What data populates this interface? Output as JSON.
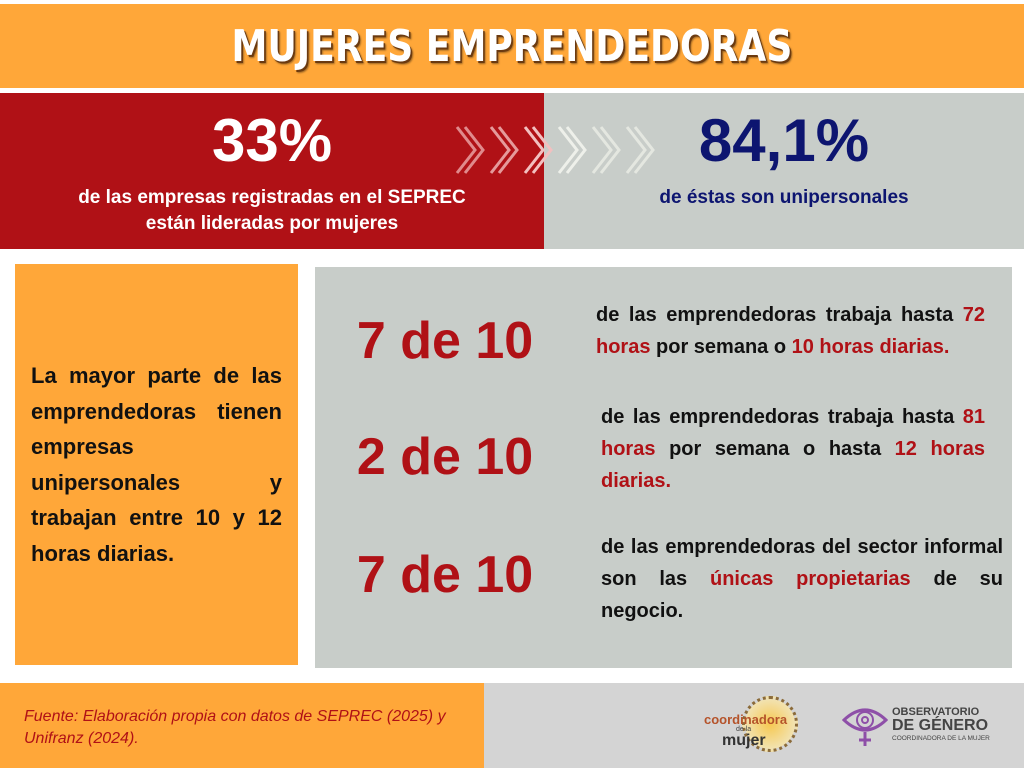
{
  "title": "MUJERES EMPRENDEDORAS",
  "top_left": {
    "value": "33%",
    "line1": "de las empresas registradas en el SEPREC",
    "line2": "están lideradas por mujeres"
  },
  "top_right": {
    "value": "84,1%",
    "text": "de éstas son unipersonales"
  },
  "left_box": {
    "text": "La mayor parte de las emprendedoras tienen empresas unipersonales y trabajan entre 10 y 12 horas diarias."
  },
  "stats": [
    {
      "value": "7 de 10",
      "p1": "de las emprendedoras trabaja hasta ",
      "h1": "72 horas",
      "p2": " por semana o ",
      "h2": "10 horas diarias.",
      "p3": ""
    },
    {
      "value": "2 de 10",
      "p1": "de las emprendedoras trabaja hasta ",
      "h1": "81 horas",
      "p2": " por semana o hasta ",
      "h2": "12 horas diarias.",
      "p3": ""
    },
    {
      "value": "7 de 10",
      "p1": "de las emprendedoras del sector informal son las ",
      "h1": "únicas propietarias",
      "p2": " de su negocio.",
      "h2": "",
      "p3": ""
    }
  ],
  "footer": {
    "source": "Fuente: Elaboración propia con datos de SEPREC (2025) y Unifranz (2024).",
    "logo1": {
      "line1": "coordinadora",
      "line2": "de la",
      "line3": "mujer"
    },
    "logo2": {
      "line1": "OBSERVATORIO",
      "line2": "DE GÉNERO",
      "line3": "COORDINADORA DE LA MUJER"
    }
  },
  "colors": {
    "orange": "#FFA739",
    "red": "#B01116",
    "gray": "#C8CDC9",
    "navy": "#0D1570",
    "purple": "#8E4FA8"
  }
}
